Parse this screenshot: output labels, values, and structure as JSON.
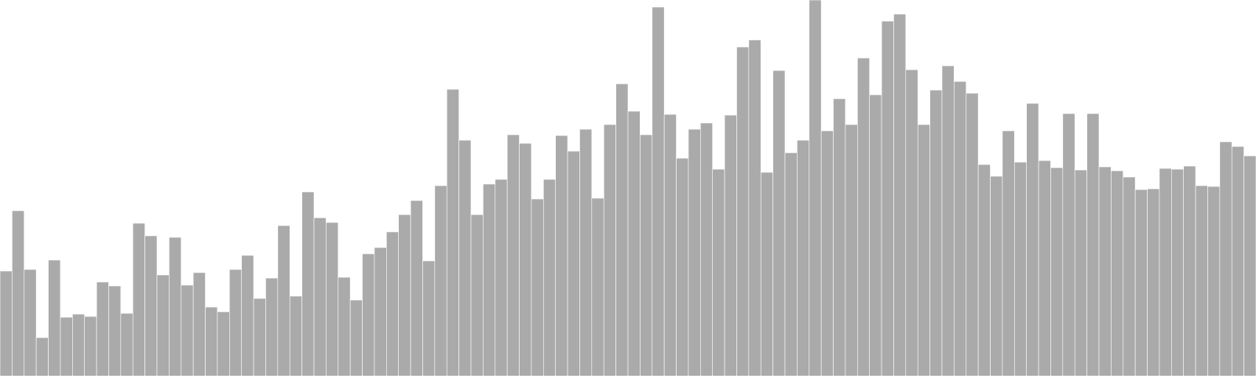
{
  "chart_data": {
    "type": "bar",
    "title": "",
    "xlabel": "",
    "ylabel": "",
    "ylim": [
      0,
      480
    ],
    "grid": false,
    "legend": "none",
    "bar_color": "#aaaaaa",
    "edge_color": "#ffffff",
    "values": [
      134,
      211,
      136,
      49,
      148,
      75,
      79,
      76,
      120,
      115,
      80,
      195,
      179,
      129,
      177,
      116,
      132,
      88,
      82,
      136,
      154,
      99,
      125,
      192,
      102,
      235,
      202,
      196,
      126,
      97,
      156,
      164,
      184,
      206,
      224,
      147,
      243,
      366,
      301,
      206,
      245,
      251,
      308,
      297,
      226,
      251,
      307,
      287,
      315,
      227,
      321,
      373,
      338,
      308,
      471,
      334,
      278,
      315,
      323,
      264,
      333,
      420,
      429,
      260,
      390,
      285,
      301,
      480,
      313,
      354,
      321,
      406,
      359,
      453,
      462,
      391,
      321,
      365,
      396,
      376,
      361,
      270,
      255,
      313,
      273,
      348,
      275,
      266,
      335,
      263,
      335,
      267,
      262,
      254,
      238,
      239,
      265,
      264,
      268,
      243,
      242,
      299,
      293,
      281
    ]
  }
}
